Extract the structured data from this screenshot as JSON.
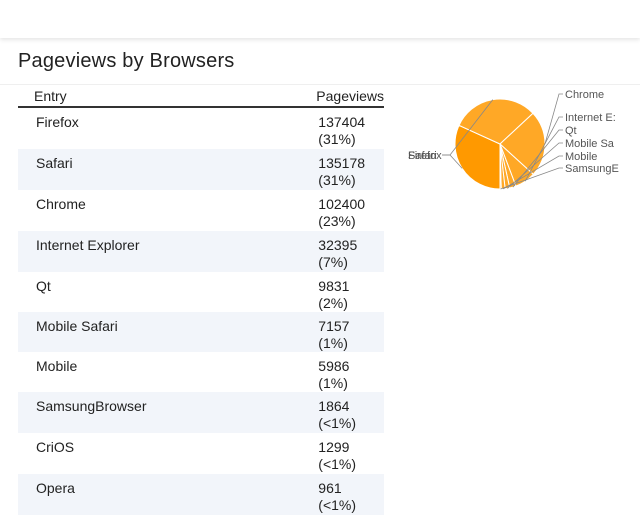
{
  "page": {
    "title": "Pageviews by Browsers"
  },
  "table": {
    "columns": [
      "Entry",
      "Pageviews"
    ],
    "rows": [
      {
        "entry": "Firefox",
        "value": "137404",
        "pct": "(31%)",
        "pv": "137404 (31%)"
      },
      {
        "entry": "Safari",
        "value": "135178",
        "pct": "(31%)",
        "pv": "135178 (31%)"
      },
      {
        "entry": "Chrome",
        "value": "102400",
        "pct": "(23%)",
        "pv": "102400 (23%)"
      },
      {
        "entry": "Internet Explorer",
        "value": "32395",
        "pct": "(7%)",
        "pv": "32395 (7%)"
      },
      {
        "entry": "Qt",
        "value": "9831",
        "pct": "(2%)",
        "pv": "9831 (2%)"
      },
      {
        "entry": "Mobile Safari",
        "value": "7157",
        "pct": "(1%)",
        "pv": "7157 (1%)"
      },
      {
        "entry": "Mobile",
        "value": "5986",
        "pct": "(1%)",
        "pv": "5986 (1%)"
      },
      {
        "entry": "SamsungBrowser",
        "value": "1864",
        "pct": "(<1%)",
        "pv": "1864 (<1%)"
      },
      {
        "entry": "CriOS",
        "value": "1299",
        "pct": "(<1%)",
        "pv": "1299 (<1%)"
      },
      {
        "entry": "Opera",
        "value": "961",
        "pct": "(<1%)",
        "pv": "961 (<1%)"
      }
    ]
  },
  "chart_data": {
    "type": "pie",
    "categories": [
      "Firefox",
      "Safari",
      "Chrome",
      "Internet Explorer",
      "Qt",
      "Mobile Safari",
      "Mobile",
      "SamsungBrowser"
    ],
    "values": [
      137404,
      135178,
      102400,
      32395,
      9831,
      7157,
      5986,
      1864
    ],
    "slice_labels": [
      "Firefox",
      "Safari",
      "Chrome",
      "Internet E:",
      "Qt",
      "Mobile Sa",
      "Mobile",
      "SamsungE"
    ],
    "colors": {
      "slice": "#ffa826",
      "highlight": "#ff9900",
      "stroke": "#ffffff",
      "leader": "#888888"
    }
  }
}
